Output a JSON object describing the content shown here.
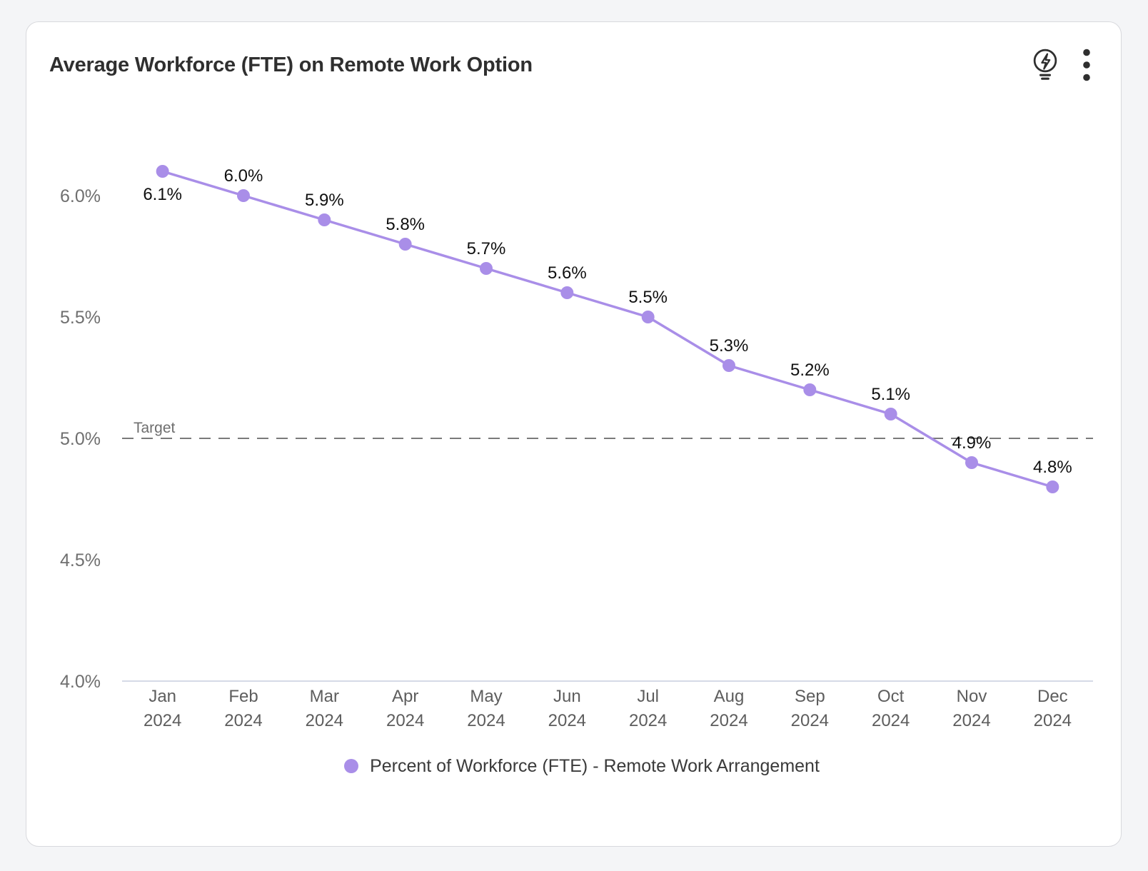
{
  "card": {
    "title": "Average Workforce (FTE) on Remote Work Option"
  },
  "toolbar": {
    "insights_icon": "lightbulb-lightning-bolt",
    "menu_icon": "vertical-kebab-dots"
  },
  "legend": {
    "series_label": "Percent of Workforce (FTE) - Remote Work Arrangement"
  },
  "chart_data": {
    "type": "line",
    "title": "Average Workforce (FTE) on Remote Work Option",
    "categories": [
      "Jan 2024",
      "Feb 2024",
      "Mar 2024",
      "Apr 2024",
      "May 2024",
      "Jun 2024",
      "Jul 2024",
      "Aug 2024",
      "Sep 2024",
      "Oct 2024",
      "Nov 2024",
      "Dec 2024"
    ],
    "series": [
      {
        "name": "Percent of Workforce (FTE) - Remote Work Arrangement",
        "values": [
          6.1,
          6.0,
          5.9,
          5.8,
          5.7,
          5.6,
          5.5,
          5.3,
          5.2,
          5.1,
          4.9,
          4.8
        ],
        "labels": [
          "6.1%",
          "6.0%",
          "5.9%",
          "5.8%",
          "5.7%",
          "5.6%",
          "5.5%",
          "5.3%",
          "5.2%",
          "5.1%",
          "4.9%",
          "4.8%"
        ],
        "color": "#a98ee8"
      }
    ],
    "target_line": {
      "value": 5.0,
      "label": "Target"
    },
    "y_axis": {
      "min": 4.0,
      "max": 6.35,
      "ticks": [
        4.0,
        4.5,
        5.0,
        5.5,
        6.0
      ],
      "tick_labels": [
        "4.0%",
        "4.5%",
        "5.0%",
        "5.5%",
        "6.0%"
      ]
    },
    "xlabel": "",
    "ylabel": "",
    "grid": false,
    "legend_position": "bottom"
  },
  "colors": {
    "series": "#a98ee8",
    "data_label": "#101010",
    "axis_line": "#c7cedf",
    "y_tick_text": "#6f6f6f",
    "x_tick_text": "#5d5d5d",
    "target_line": "#7a7a7a",
    "target_text": "#6e6e6e",
    "title_text": "#2f2f2f",
    "icon": "#2f2f2f",
    "card_bg": "#ffffff",
    "page_bg": "#f4f5f7",
    "card_border": "#d8d9dd"
  }
}
